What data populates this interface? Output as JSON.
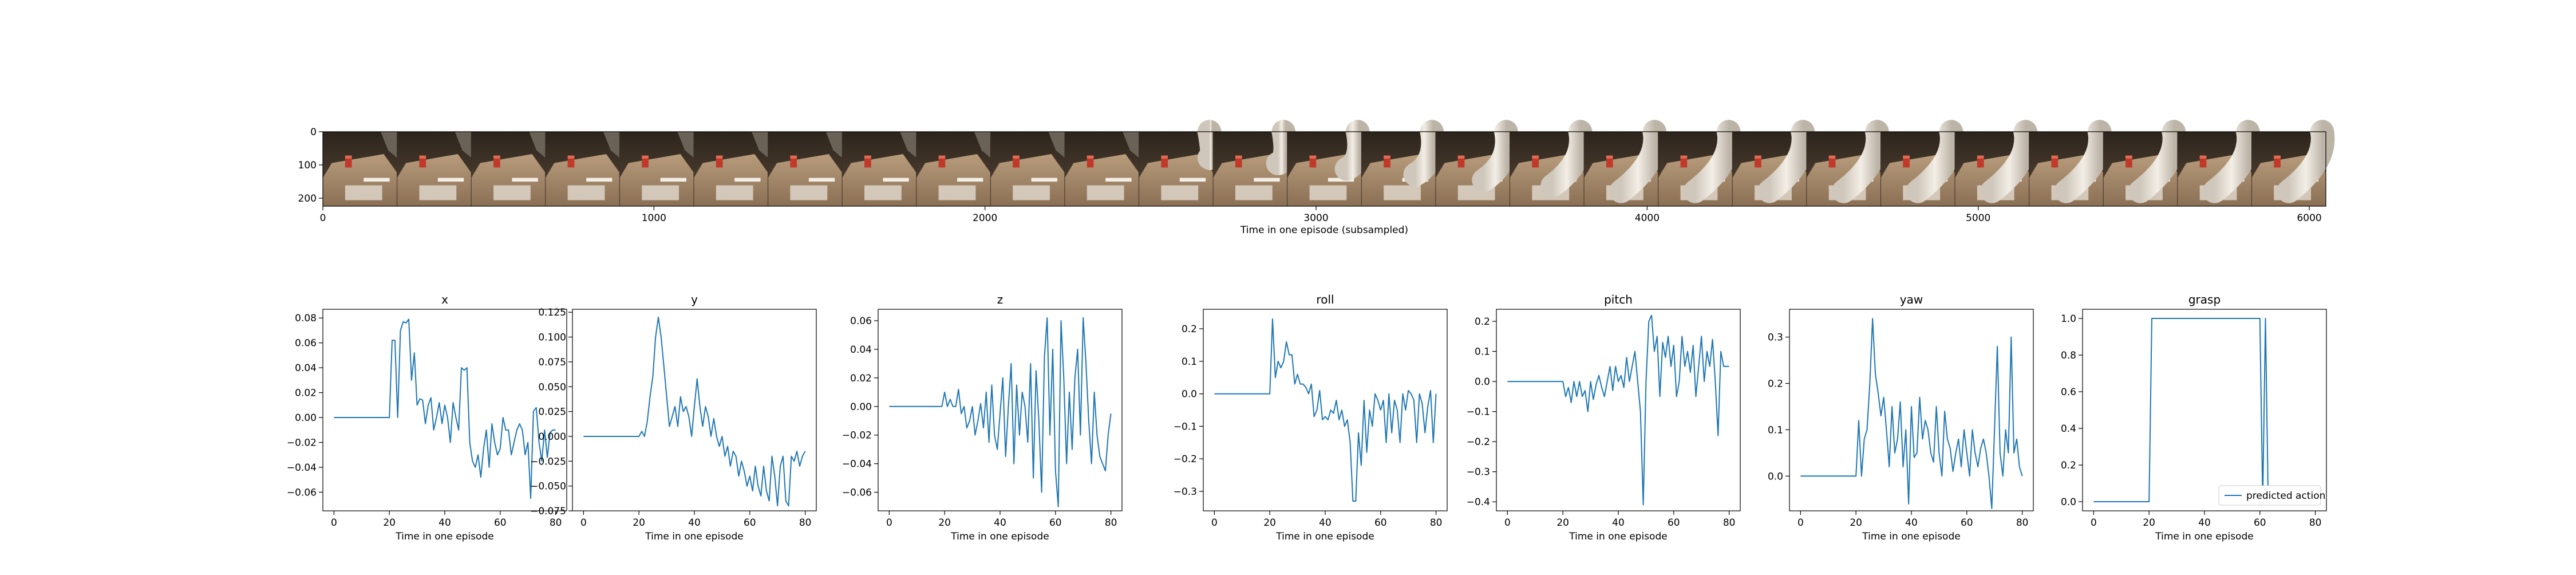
{
  "film": {
    "xlabel": "Time in one episode (subsampled)",
    "x_ticks": [
      "0",
      "1000",
      "2000",
      "3000",
      "4000",
      "5000",
      "6000"
    ],
    "y_ticks": [
      "0",
      "100",
      "200"
    ],
    "x_range": [
      0,
      6050
    ],
    "y_range": [
      0,
      224
    ],
    "frames": 27,
    "arm_from_frame": 11
  },
  "chart_data": [
    {
      "type": "line",
      "title": "x",
      "xlabel": "Time in one episode",
      "xlim": [
        -4,
        84
      ],
      "ylim": [
        -0.075,
        0.087
      ],
      "x_ticks": [
        0,
        20,
        40,
        60,
        80
      ],
      "y_ticks": [
        -0.06,
        -0.04,
        -0.02,
        0.0,
        0.02,
        0.04,
        0.06,
        0.08
      ],
      "y_tick_labels": [
        "−0.06",
        "−0.04",
        "−0.02",
        "0.00",
        "0.02",
        "0.04",
        "0.06",
        "0.08"
      ],
      "color": "#1f77b4",
      "values": [
        0,
        0,
        0,
        0,
        0,
        0,
        0,
        0,
        0,
        0,
        0,
        0,
        0,
        0,
        0,
        0,
        0,
        0,
        0,
        0,
        0,
        0.062,
        0.062,
        0.0,
        0.07,
        0.077,
        0.076,
        0.079,
        0.03,
        0.052,
        0.01,
        0.015,
        0.014,
        -0.005,
        0.01,
        0.016,
        -0.01,
        0.0,
        0.012,
        -0.005,
        0.01,
        0.0,
        -0.02,
        0.012,
        0.0,
        -0.01,
        0.04,
        0.038,
        0.04,
        -0.02,
        -0.035,
        -0.04,
        -0.03,
        -0.048,
        -0.025,
        -0.01,
        -0.04,
        -0.005,
        -0.02,
        -0.03,
        -0.025,
        0.0,
        -0.01,
        -0.01,
        -0.03,
        -0.02,
        -0.01,
        -0.005,
        -0.01,
        -0.03,
        -0.02,
        -0.065,
        0.005,
        0.008,
        -0.02,
        -0.035,
        -0.01,
        -0.032,
        -0.012,
        -0.01,
        -0.01
      ]
    },
    {
      "type": "line",
      "title": "y",
      "xlabel": "Time in one episode",
      "xlim": [
        -4,
        84
      ],
      "ylim": [
        -0.075,
        0.128
      ],
      "x_ticks": [
        0,
        20,
        40,
        60,
        80
      ],
      "y_ticks": [
        -0.075,
        -0.05,
        -0.025,
        0.0,
        0.025,
        0.05,
        0.075,
        0.1,
        0.125
      ],
      "y_tick_labels": [
        "−0.075",
        "−0.050",
        "−0.025",
        "0.000",
        "0.025",
        "0.050",
        "0.075",
        "0.100",
        "0.125"
      ],
      "color": "#1f77b4",
      "values": [
        0,
        0,
        0,
        0,
        0,
        0,
        0,
        0,
        0,
        0,
        0,
        0,
        0,
        0,
        0,
        0,
        0,
        0,
        0,
        0,
        0,
        0.005,
        0.0,
        0.015,
        0.04,
        0.06,
        0.1,
        0.12,
        0.1,
        0.07,
        0.04,
        0.01,
        0.02,
        0.03,
        0.01,
        0.04,
        0.025,
        0.03,
        0.02,
        0.0,
        0.03,
        0.058,
        0.03,
        0.01,
        0.03,
        0.02,
        0.0,
        0.018,
        0.0,
        -0.01,
        0.0,
        -0.02,
        -0.01,
        -0.03,
        -0.015,
        -0.02,
        -0.04,
        -0.025,
        -0.035,
        -0.05,
        -0.04,
        -0.055,
        -0.03,
        -0.05,
        -0.06,
        -0.03,
        -0.055,
        -0.065,
        -0.02,
        -0.04,
        -0.07,
        -0.03,
        -0.02,
        -0.065,
        -0.07,
        -0.02,
        -0.025,
        -0.015,
        -0.03,
        -0.02,
        -0.015
      ]
    },
    {
      "type": "line",
      "title": "z",
      "xlabel": "Time in one episode",
      "xlim": [
        -4,
        84
      ],
      "ylim": [
        -0.073,
        0.068
      ],
      "x_ticks": [
        0,
        20,
        40,
        60,
        80
      ],
      "y_ticks": [
        -0.06,
        -0.04,
        -0.02,
        0.0,
        0.02,
        0.04,
        0.06
      ],
      "y_tick_labels": [
        "−0.06",
        "−0.04",
        "−0.02",
        "0.00",
        "0.02",
        "0.04",
        "0.06"
      ],
      "color": "#1f77b4",
      "values": [
        0,
        0,
        0,
        0,
        0,
        0,
        0,
        0,
        0,
        0,
        0,
        0,
        0,
        0,
        0,
        0,
        0,
        0,
        0,
        0,
        0.01,
        0.0,
        0.005,
        0.0,
        0.0,
        0.012,
        -0.005,
        0.0,
        -0.015,
        -0.01,
        0.0,
        -0.02,
        -0.01,
        0.002,
        -0.015,
        0.01,
        -0.025,
        0.015,
        -0.02,
        -0.03,
        -0.005,
        0.02,
        -0.035,
        0.0,
        0.03,
        -0.04,
        0.015,
        -0.02,
        0.01,
        0.0,
        -0.025,
        0.03,
        -0.05,
        0.025,
        -0.01,
        -0.06,
        0.035,
        0.062,
        -0.02,
        0.04,
        -0.045,
        -0.07,
        0.06,
        0.02,
        -0.04,
        0.01,
        -0.03,
        0.02,
        0.04,
        -0.02,
        0.062,
        0.03,
        -0.01,
        -0.04,
        0.01,
        -0.02,
        -0.035,
        -0.04,
        -0.045,
        -0.02,
        -0.005
      ]
    },
    {
      "type": "line",
      "title": "roll",
      "xlabel": "Time in one episode",
      "xlim": [
        -4,
        84
      ],
      "ylim": [
        -0.36,
        0.26
      ],
      "x_ticks": [
        0,
        20,
        40,
        60,
        80
      ],
      "y_ticks": [
        -0.3,
        -0.2,
        -0.1,
        0.0,
        0.1,
        0.2
      ],
      "y_tick_labels": [
        "−0.3",
        "−0.2",
        "−0.1",
        "0.0",
        "0.1",
        "0.2"
      ],
      "color": "#1f77b4",
      "values": [
        0,
        0,
        0,
        0,
        0,
        0,
        0,
        0,
        0,
        0,
        0,
        0,
        0,
        0,
        0,
        0,
        0,
        0,
        0,
        0,
        0.0,
        0.23,
        0.05,
        0.1,
        0.08,
        0.1,
        0.16,
        0.12,
        0.12,
        0.03,
        0.06,
        0.03,
        0.03,
        0.02,
        0.0,
        0.03,
        -0.07,
        -0.05,
        0.01,
        -0.08,
        -0.07,
        -0.08,
        -0.05,
        -0.06,
        -0.02,
        -0.08,
        -0.05,
        -0.1,
        -0.08,
        -0.15,
        -0.33,
        -0.33,
        -0.12,
        -0.22,
        -0.02,
        -0.18,
        -0.05,
        -0.1,
        0.0,
        -0.02,
        -0.05,
        -0.02,
        -0.15,
        0.0,
        -0.12,
        -0.02,
        -0.05,
        -0.15,
        0.0,
        -0.05,
        0.01,
        0.0,
        -0.02,
        -0.15,
        0.0,
        -0.03,
        -0.12,
        -0.04,
        0.01,
        -0.15,
        0.0
      ]
    },
    {
      "type": "line",
      "title": "pitch",
      "xlabel": "Time in one episode",
      "xlim": [
        -4,
        84
      ],
      "ylim": [
        -0.43,
        0.24
      ],
      "x_ticks": [
        0,
        20,
        40,
        60,
        80
      ],
      "y_ticks": [
        -0.4,
        -0.3,
        -0.2,
        -0.1,
        0.0,
        0.1,
        0.2
      ],
      "y_tick_labels": [
        "−0.4",
        "−0.3",
        "−0.2",
        "−0.1",
        "0.0",
        "0.1",
        "0.2"
      ],
      "color": "#1f77b4",
      "values": [
        0,
        0,
        0,
        0,
        0,
        0,
        0,
        0,
        0,
        0,
        0,
        0,
        0,
        0,
        0,
        0,
        0,
        0,
        0,
        0,
        0.0,
        -0.05,
        -0.02,
        -0.07,
        0.0,
        -0.05,
        0.0,
        -0.05,
        -0.03,
        -0.1,
        0.0,
        -0.06,
        -0.01,
        0.02,
        -0.02,
        -0.05,
        0.0,
        0.05,
        -0.03,
        0.05,
        0.0,
        0.02,
        -0.02,
        0.08,
        0.0,
        0.05,
        0.1,
        0.0,
        -0.1,
        -0.41,
        0.0,
        0.2,
        0.22,
        0.1,
        0.15,
        -0.05,
        0.13,
        0.08,
        0.15,
        0.05,
        0.12,
        -0.05,
        0.0,
        0.15,
        0.05,
        0.1,
        0.03,
        0.12,
        -0.05,
        0.05,
        0.15,
        0.0,
        0.1,
        0.05,
        0.14,
        0.0,
        -0.18,
        0.1,
        0.05,
        0.05,
        0.05
      ]
    },
    {
      "type": "line",
      "title": "yaw",
      "xlabel": "Time in one episode",
      "xlim": [
        -4,
        84
      ],
      "ylim": [
        -0.075,
        0.36
      ],
      "x_ticks": [
        0,
        20,
        40,
        60,
        80
      ],
      "y_ticks": [
        0.0,
        0.1,
        0.2,
        0.3
      ],
      "y_tick_labels": [
        "0.0",
        "0.1",
        "0.2",
        "0.3"
      ],
      "color": "#1f77b4",
      "values": [
        0,
        0,
        0,
        0,
        0,
        0,
        0,
        0,
        0,
        0,
        0,
        0,
        0,
        0,
        0,
        0,
        0,
        0,
        0,
        0,
        0.0,
        0.12,
        0.0,
        0.08,
        0.1,
        0.2,
        0.34,
        0.22,
        0.18,
        0.13,
        0.17,
        0.1,
        0.02,
        0.15,
        0.05,
        0.08,
        0.16,
        0.02,
        0.1,
        -0.06,
        0.15,
        0.04,
        0.05,
        0.17,
        0.08,
        0.12,
        0.1,
        0.05,
        0.03,
        0.15,
        0.05,
        0.0,
        0.14,
        0.08,
        0.06,
        0.01,
        0.05,
        0.08,
        0.02,
        0.1,
        0.05,
        0.0,
        0.1,
        0.05,
        0.02,
        0.06,
        0.08,
        0.05,
        0.0,
        -0.07,
        0.1,
        0.28,
        0.05,
        0.0,
        0.1,
        0.05,
        0.3,
        0.05,
        0.08,
        0.02,
        0.0
      ]
    },
    {
      "type": "line",
      "title": "grasp",
      "xlabel": "Time in one episode",
      "xlim": [
        -4,
        84
      ],
      "ylim": [
        -0.05,
        1.05
      ],
      "x_ticks": [
        0,
        20,
        40,
        60,
        80
      ],
      "y_ticks": [
        0.0,
        0.2,
        0.4,
        0.6,
        0.8,
        1.0
      ],
      "y_tick_labels": [
        "0.0",
        "0.2",
        "0.4",
        "0.6",
        "0.8",
        "1.0"
      ],
      "color": "#1f77b4",
      "legend": "predicted action",
      "legend_position": "lower-right",
      "values": [
        0,
        0,
        0,
        0,
        0,
        0,
        0,
        0,
        0,
        0,
        0,
        0,
        0,
        0,
        0,
        0,
        0,
        0,
        0,
        0,
        0,
        1,
        1,
        1,
        1,
        1,
        1,
        1,
        1,
        1,
        1,
        1,
        1,
        1,
        1,
        1,
        1,
        1,
        1,
        1,
        1,
        1,
        1,
        1,
        1,
        1,
        1,
        1,
        1,
        1,
        1,
        1,
        1,
        1,
        1,
        1,
        1,
        1,
        1,
        1,
        1,
        0,
        1,
        0,
        0,
        0,
        0,
        0,
        0,
        0,
        0,
        0,
        0,
        0,
        0,
        0,
        0,
        0,
        0,
        0,
        0
      ]
    }
  ]
}
